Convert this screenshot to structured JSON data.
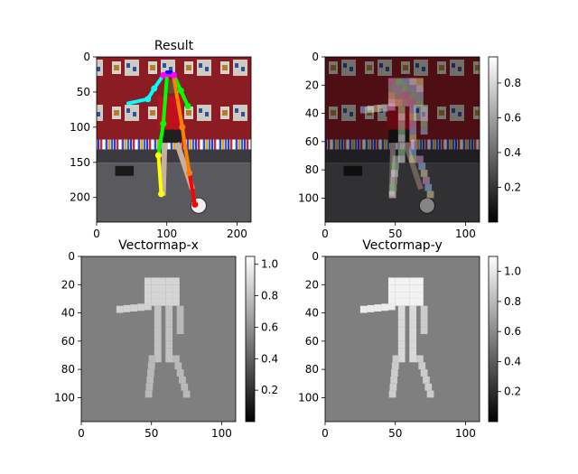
{
  "chart_data": [
    {
      "type": "heatmap",
      "title": "Result",
      "description_visible": "photo of a boy kicking a soccer ball in front of a red wall, with a colored pose skeleton overlaid",
      "xticks": [
        "0",
        "100",
        "200"
      ],
      "yticks": [
        "0",
        "50",
        "100",
        "150",
        "200"
      ],
      "xlim": [
        0,
        220
      ],
      "ylim": [
        0,
        235
      ],
      "colorbar": false,
      "skeleton_colors": [
        "#ff0000",
        "#ff7f00",
        "#ffff00",
        "#00ff00",
        "#00ffff",
        "#0000ff",
        "#ff00ff"
      ]
    },
    {
      "type": "heatmap",
      "title": "",
      "description_visible": "same photo, darkened, with heatmap blocks along the body",
      "xticks": [
        "0",
        "50",
        "100"
      ],
      "yticks": [
        "0",
        "20",
        "40",
        "60",
        "80",
        "100"
      ],
      "xlim": [
        0,
        110
      ],
      "ylim": [
        0,
        117
      ],
      "colorbar": true,
      "colorbar_ticks": [
        "0.2",
        "0.4",
        "0.6",
        "0.8"
      ],
      "colorbar_range": [
        0,
        0.95
      ]
    },
    {
      "type": "heatmap",
      "title": "Vectormap-x",
      "xticks": [
        "0",
        "50",
        "100"
      ],
      "yticks": [
        "0",
        "20",
        "40",
        "60",
        "80",
        "100"
      ],
      "xlim": [
        0,
        110
      ],
      "ylim": [
        0,
        117
      ],
      "colorbar": true,
      "colorbar_ticks": [
        "0.2",
        "0.4",
        "0.6",
        "0.8",
        "1.0"
      ],
      "colorbar_range": [
        0,
        1.05
      ]
    },
    {
      "type": "heatmap",
      "title": "Vectormap-y",
      "xticks": [
        "0",
        "50",
        "100"
      ],
      "yticks": [
        "0",
        "20",
        "40",
        "60",
        "80",
        "100"
      ],
      "xlim": [
        0,
        110
      ],
      "ylim": [
        0,
        117
      ],
      "colorbar": true,
      "colorbar_ticks": [
        "0.2",
        "0.4",
        "0.6",
        "0.8",
        "1.0"
      ],
      "colorbar_range": [
        0,
        1.1
      ]
    }
  ],
  "colors": {
    "background_gray": "#7f7f7f",
    "wall_red": "#8c1c24",
    "ground_gray": "#5a5a5e"
  }
}
